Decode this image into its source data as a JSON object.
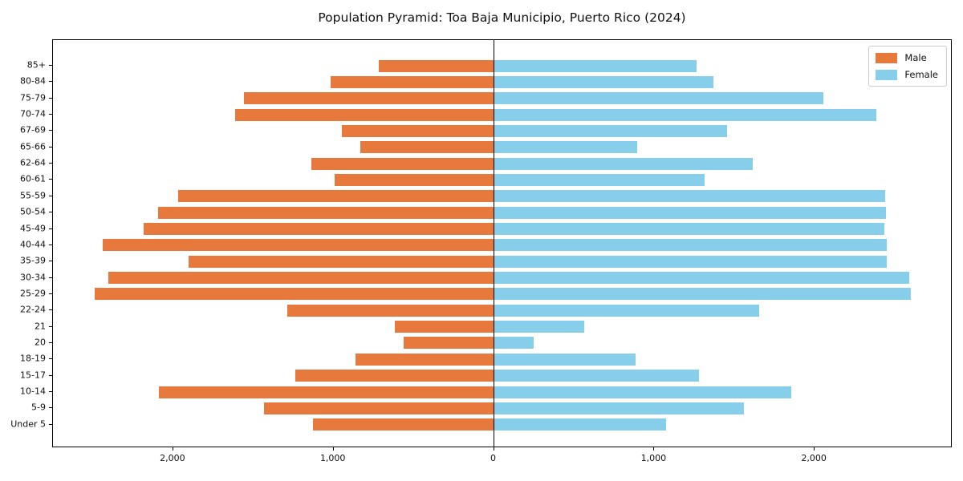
{
  "title": "Population Pyramid: Toa Baja Municipio, Puerto Rico (2024)",
  "legend": {
    "male_label": "Male",
    "female_label": "Female"
  },
  "colors": {
    "male": "#e8793d",
    "female": "#87ceeb",
    "axis": "#000000"
  },
  "chart_data": {
    "type": "bar",
    "variant": "population-pyramid",
    "orientation": "horizontal",
    "title": "Population Pyramid: Toa Baja Municipio, Puerto Rico (2024)",
    "categories_top_to_bottom": [
      "85+",
      "80-84",
      "75-79",
      "70-74",
      "67-69",
      "65-66",
      "62-64",
      "60-61",
      "55-59",
      "50-54",
      "45-49",
      "40-44",
      "35-39",
      "30-34",
      "25-29",
      "22-24",
      "21",
      "20",
      "18-19",
      "15-17",
      "10-14",
      "5-9",
      "Under 5"
    ],
    "series": [
      {
        "name": "Male",
        "side": "left",
        "color": "#e8793d",
        "values_top_to_bottom": [
          720,
          1020,
          1560,
          1615,
          950,
          835,
          1140,
          995,
          1970,
          2095,
          2185,
          2440,
          1905,
          2405,
          2490,
          1290,
          620,
          565,
          865,
          1240,
          2090,
          1435,
          1130
        ]
      },
      {
        "name": "Female",
        "side": "right",
        "color": "#87ceeb",
        "values_top_to_bottom": [
          1265,
          1370,
          2055,
          2385,
          1455,
          895,
          1615,
          1315,
          2440,
          2445,
          2435,
          2450,
          2450,
          2590,
          2600,
          1655,
          565,
          250,
          885,
          1280,
          1855,
          1560,
          1075
        ]
      }
    ],
    "x_ticks": {
      "values": [
        -2000,
        -1000,
        0,
        1000,
        2000
      ],
      "labels": [
        "2,000",
        "1,000",
        "0",
        "1,000",
        "2,000"
      ]
    },
    "xlim": [
      -2750,
      2860
    ],
    "grid": false,
    "legend_position": "upper right",
    "zero_axis_line": true
  }
}
